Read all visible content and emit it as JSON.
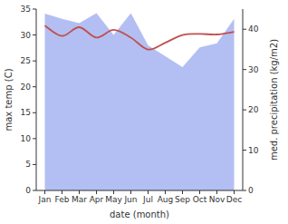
{
  "chart_data": {
    "type": "line",
    "x_label": "date (month)",
    "y_label": "max temp (C)",
    "y2_label": "med. precipitation (kg/m2)",
    "categories": [
      "Jan",
      "Feb",
      "Mar",
      "Apr",
      "May",
      "Jun",
      "Jul",
      "Aug",
      "Sep",
      "Oct",
      "Nov",
      "Dec"
    ],
    "ylim": [
      0,
      35
    ],
    "yticks": [
      0,
      5,
      10,
      15,
      20,
      25,
      30,
      35
    ],
    "y2lim": [
      0,
      45
    ],
    "y2ticks": [
      0,
      10,
      20,
      30,
      40
    ],
    "series": [
      {
        "name": "med. precipitation",
        "type": "area",
        "axis": "y2",
        "color": "#b3bff2",
        "values": [
          43.9,
          42.6,
          41.5,
          44.0,
          38.6,
          44.0,
          36.0,
          33.3,
          30.6,
          35.5,
          36.5,
          42.6
        ]
      },
      {
        "name": "max temp",
        "type": "line",
        "color": "#c0504d",
        "values": [
          31.8,
          29.8,
          31.5,
          29.5,
          31.0,
          29.5,
          27.2,
          28.5,
          30.0,
          30.2,
          30.1,
          30.6
        ]
      }
    ]
  }
}
